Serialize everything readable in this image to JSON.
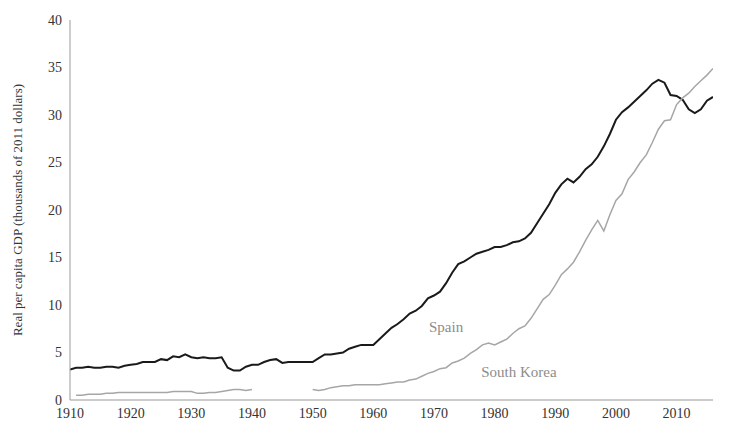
{
  "chart_data": {
    "type": "line",
    "y_label": "Real per capita GDP (thousands of 2011 dollars)",
    "x": [
      1910,
      1911,
      1912,
      1913,
      1914,
      1915,
      1916,
      1917,
      1918,
      1919,
      1920,
      1921,
      1922,
      1923,
      1924,
      1925,
      1926,
      1927,
      1928,
      1929,
      1930,
      1931,
      1932,
      1933,
      1934,
      1935,
      1936,
      1937,
      1938,
      1939,
      1940,
      1941,
      1942,
      1943,
      1944,
      1945,
      1946,
      1947,
      1948,
      1949,
      1950,
      1951,
      1952,
      1953,
      1954,
      1955,
      1956,
      1957,
      1958,
      1959,
      1960,
      1961,
      1962,
      1963,
      1964,
      1965,
      1966,
      1967,
      1968,
      1969,
      1970,
      1971,
      1972,
      1973,
      1974,
      1975,
      1976,
      1977,
      1978,
      1979,
      1980,
      1981,
      1982,
      1983,
      1984,
      1985,
      1986,
      1987,
      1988,
      1989,
      1990,
      1991,
      1992,
      1993,
      1994,
      1995,
      1996,
      1997,
      1998,
      1999,
      2000,
      2001,
      2002,
      2003,
      2004,
      2005,
      2006,
      2007,
      2008,
      2009,
      2010,
      2011,
      2012,
      2013,
      2014,
      2015,
      2016
    ],
    "series": [
      {
        "name": "Spain",
        "color": "#1a1a1a",
        "values": [
          3.2,
          3.4,
          3.4,
          3.5,
          3.4,
          3.4,
          3.5,
          3.5,
          3.4,
          3.6,
          3.7,
          3.8,
          4.0,
          4.0,
          4.0,
          4.3,
          4.2,
          4.6,
          4.5,
          4.8,
          4.5,
          4.4,
          4.5,
          4.4,
          4.4,
          4.5,
          3.4,
          3.1,
          3.1,
          3.5,
          3.7,
          3.7,
          4.0,
          4.2,
          4.3,
          3.9,
          4.0,
          4.0,
          4.0,
          4.0,
          4.0,
          4.4,
          4.8,
          4.8,
          4.9,
          5.0,
          5.4,
          5.6,
          5.8,
          5.8,
          5.8,
          6.4,
          7.0,
          7.6,
          8.0,
          8.5,
          9.1,
          9.4,
          9.9,
          10.7,
          11.0,
          11.4,
          12.3,
          13.4,
          14.3,
          14.6,
          15.0,
          15.4,
          15.6,
          15.8,
          16.1,
          16.1,
          16.3,
          16.6,
          16.7,
          17.0,
          17.6,
          18.6,
          19.6,
          20.6,
          21.8,
          22.7,
          23.3,
          22.9,
          23.5,
          24.3,
          24.8,
          25.6,
          26.7,
          28.0,
          29.5,
          30.3,
          30.8,
          31.4,
          32.0,
          32.6,
          33.3,
          33.7,
          33.4,
          32.1,
          32.0,
          31.6,
          30.6,
          30.2,
          30.6,
          31.5,
          31.9
        ]
      },
      {
        "name": "South Korea",
        "color": "#a6a6a6",
        "values": [
          null,
          0.5,
          0.5,
          0.6,
          0.6,
          0.6,
          0.7,
          0.7,
          0.8,
          0.8,
          0.8,
          0.8,
          0.8,
          0.8,
          0.8,
          0.8,
          0.8,
          0.9,
          0.9,
          0.9,
          0.9,
          0.7,
          0.7,
          0.8,
          0.8,
          0.9,
          1.0,
          1.1,
          1.1,
          1.0,
          1.1,
          null,
          null,
          null,
          null,
          null,
          null,
          null,
          null,
          null,
          1.1,
          1.0,
          1.1,
          1.3,
          1.4,
          1.5,
          1.5,
          1.6,
          1.6,
          1.6,
          1.6,
          1.6,
          1.7,
          1.8,
          1.9,
          1.9,
          2.1,
          2.2,
          2.5,
          2.8,
          3.0,
          3.3,
          3.4,
          3.9,
          4.1,
          4.4,
          4.9,
          5.3,
          5.8,
          6.0,
          5.8,
          6.1,
          6.4,
          7.0,
          7.5,
          7.8,
          8.6,
          9.6,
          10.6,
          11.1,
          12.1,
          13.2,
          13.8,
          14.5,
          15.6,
          16.8,
          17.9,
          18.9,
          17.8,
          19.5,
          21.0,
          21.7,
          23.2,
          24.0,
          25.0,
          25.8,
          27.1,
          28.5,
          29.4,
          29.5,
          31.1,
          31.8,
          32.3,
          33.0,
          33.6,
          34.2,
          34.9
        ]
      }
    ],
    "annotations": [
      {
        "text": "Spain",
        "x": 1972,
        "y": 7.7
      },
      {
        "text": "South Korea",
        "x": 1984,
        "y": 3.0
      }
    ],
    "xlim": [
      1910,
      2016
    ],
    "xticks": [
      1910,
      1920,
      1930,
      1940,
      1950,
      1960,
      1970,
      1980,
      1990,
      2000,
      2010
    ],
    "ylim": [
      0,
      40
    ],
    "yticks": [
      0,
      5,
      10,
      15,
      20,
      25,
      30,
      35,
      40
    ],
    "grid": false
  }
}
